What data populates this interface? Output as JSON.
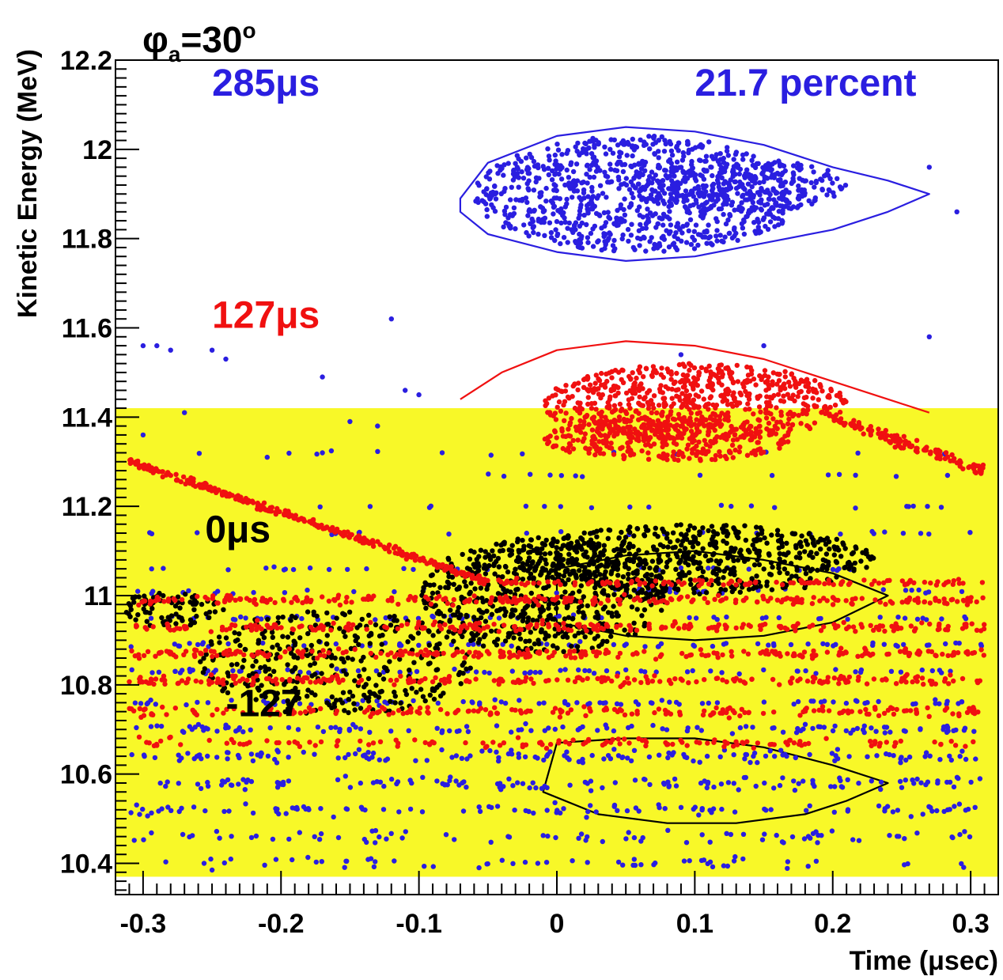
{
  "chart_data": {
    "type": "scatter",
    "title_prefix": "φ",
    "title_sub": "a",
    "title_suffix": "=30",
    "title_sup": "o",
    "xlabel": "Time (μsec)",
    "ylabel": "Kinetic Energy (MeV)",
    "xlim": [
      -0.32,
      0.32
    ],
    "ylim": [
      10.33,
      12.2
    ],
    "xticks": [
      -0.3,
      -0.2,
      -0.1,
      0,
      0.1,
      0.2,
      0.3
    ],
    "xtick_labels": [
      "-0.3",
      "-0.2",
      "-0.1",
      "0",
      "0.1",
      "0.2",
      "0.3"
    ],
    "yticks": [
      10.4,
      10.6,
      10.8,
      11.0,
      11.2,
      11.4,
      11.6,
      11.8,
      12.0,
      12.2
    ],
    "ytick_labels": [
      "10.4",
      "10.6",
      "10.8",
      "11",
      "11.2",
      "11.4",
      "11.6",
      "11.8",
      "12",
      "12.2"
    ],
    "highlight_band": {
      "y_range": [
        10.37,
        11.42
      ],
      "color": "#f8f828"
    },
    "grid": false,
    "colors": {
      "blue": "#2a1ee0",
      "red": "#f01010",
      "black": "#000000"
    },
    "annotations": [
      {
        "text": "285μs",
        "color": "#2a1ee0",
        "x": -0.25,
        "y": 12.12
      },
      {
        "text": "21.7 percent",
        "color": "#2a1ee0",
        "x": 0.1,
        "y": 12.12
      },
      {
        "text": "127μs",
        "color": "#f01010",
        "x": -0.25,
        "y": 11.6
      },
      {
        "text": "0μs",
        "color": "#000000",
        "x": -0.255,
        "y": 11.12
      },
      {
        "text": "-127",
        "color": "#000000",
        "x": -0.24,
        "y": 10.73
      }
    ],
    "series": [
      {
        "name": "285μs",
        "color": "#2a1ee0",
        "separatrix": [
          [
            -0.07,
            11.89
          ],
          [
            -0.05,
            11.97
          ],
          [
            0.0,
            12.03
          ],
          [
            0.05,
            12.05
          ],
          [
            0.1,
            12.04
          ],
          [
            0.15,
            12.01
          ],
          [
            0.2,
            11.96
          ],
          [
            0.24,
            11.93
          ],
          [
            0.27,
            11.9
          ],
          [
            0.24,
            11.86
          ],
          [
            0.2,
            11.82
          ],
          [
            0.15,
            11.79
          ],
          [
            0.1,
            11.76
          ],
          [
            0.05,
            11.75
          ],
          [
            0.0,
            11.77
          ],
          [
            -0.05,
            11.81
          ],
          [
            -0.07,
            11.86
          ]
        ],
        "clouds": [
          {
            "cx": 0.06,
            "cy": 11.9,
            "rx": 0.12,
            "ry": 0.13,
            "n": 900
          },
          {
            "cx": 0.13,
            "cy": 11.92,
            "rx": 0.08,
            "ry": 0.06,
            "n": 250
          }
        ],
        "bands": [
          {
            "y": 10.4,
            "x0": -0.31,
            "x1": 0.31,
            "n": 60,
            "jitter": 0.02
          },
          {
            "y": 10.46,
            "x0": -0.31,
            "x1": 0.31,
            "n": 80,
            "jitter": 0.02
          },
          {
            "y": 10.52,
            "x0": -0.31,
            "x1": 0.31,
            "n": 110,
            "jitter": 0.02
          },
          {
            "y": 10.58,
            "x0": -0.31,
            "x1": 0.31,
            "n": 140,
            "jitter": 0.02
          },
          {
            "y": 10.64,
            "x0": -0.31,
            "x1": 0.31,
            "n": 150,
            "jitter": 0.02
          },
          {
            "y": 10.7,
            "x0": -0.31,
            "x1": 0.31,
            "n": 120,
            "jitter": 0.015
          },
          {
            "y": 10.76,
            "x0": -0.31,
            "x1": 0.31,
            "n": 90,
            "jitter": 0.01
          },
          {
            "y": 10.83,
            "x0": -0.31,
            "x1": 0.31,
            "n": 80,
            "jitter": 0.008
          },
          {
            "y": 10.89,
            "x0": -0.31,
            "x1": 0.31,
            "n": 70,
            "jitter": 0.008
          },
          {
            "y": 10.95,
            "x0": -0.31,
            "x1": 0.31,
            "n": 60,
            "jitter": 0.008
          },
          {
            "y": 11.01,
            "x0": -0.31,
            "x1": 0.31,
            "n": 40,
            "jitter": 0.008
          },
          {
            "y": 11.06,
            "x0": -0.3,
            "x1": 0.3,
            "n": 30,
            "jitter": 0.006
          },
          {
            "y": 11.14,
            "x0": -0.3,
            "x1": 0.3,
            "n": 25,
            "jitter": 0.006
          },
          {
            "y": 11.2,
            "x0": -0.18,
            "x1": 0.28,
            "n": 20,
            "jitter": 0.006
          },
          {
            "y": 11.27,
            "x0": -0.05,
            "x1": 0.3,
            "n": 14,
            "jitter": 0.006
          },
          {
            "y": 11.32,
            "x0": -0.28,
            "x1": 0.3,
            "n": 14,
            "jitter": 0.01
          }
        ],
        "points": [
          [
            -0.3,
            11.56
          ],
          [
            -0.29,
            11.56
          ],
          [
            -0.28,
            11.55
          ],
          [
            -0.25,
            11.55
          ],
          [
            -0.24,
            11.53
          ],
          [
            -0.17,
            11.49
          ],
          [
            -0.12,
            11.62
          ],
          [
            -0.11,
            11.46
          ],
          [
            -0.1,
            11.45
          ],
          [
            0.09,
            11.54
          ],
          [
            0.15,
            11.56
          ],
          [
            0.27,
            11.58
          ],
          [
            0.27,
            11.96
          ],
          [
            0.29,
            11.86
          ],
          [
            -0.3,
            11.36
          ],
          [
            -0.27,
            11.41
          ],
          [
            -0.21,
            11.31
          ],
          [
            -0.17,
            11.32
          ],
          [
            -0.15,
            11.39
          ],
          [
            -0.13,
            11.38
          ]
        ]
      },
      {
        "name": "127μs",
        "color": "#f01010",
        "separatrix": [
          [
            -0.07,
            11.44
          ],
          [
            -0.04,
            11.5
          ],
          [
            0.0,
            11.55
          ],
          [
            0.05,
            11.57
          ],
          [
            0.1,
            11.56
          ],
          [
            0.15,
            11.53
          ],
          [
            0.2,
            11.48
          ],
          [
            0.27,
            11.41
          ]
        ],
        "clouds": [
          {
            "cx": 0.1,
            "cy": 11.43,
            "rx": 0.11,
            "ry": 0.09,
            "n": 700
          },
          {
            "cx": 0.08,
            "cy": 11.35,
            "rx": 0.09,
            "ry": 0.05,
            "n": 300
          }
        ],
        "diagonal": {
          "x0": -0.31,
          "y0": 11.3,
          "x1": -0.05,
          "y1": 11.03,
          "n": 320,
          "jitter": 0.012
        },
        "tail": {
          "x0": 0.2,
          "y0": 11.4,
          "x1": 0.31,
          "y1": 11.28,
          "n": 120,
          "jitter": 0.02
        },
        "bands": [
          {
            "y": 10.67,
            "x0": -0.31,
            "x1": 0.31,
            "n": 140,
            "jitter": 0.015
          },
          {
            "y": 10.74,
            "x0": -0.31,
            "x1": 0.31,
            "n": 200,
            "jitter": 0.015
          },
          {
            "y": 10.81,
            "x0": -0.31,
            "x1": 0.31,
            "n": 240,
            "jitter": 0.015
          },
          {
            "y": 10.87,
            "x0": -0.31,
            "x1": 0.31,
            "n": 260,
            "jitter": 0.015
          },
          {
            "y": 10.93,
            "x0": -0.31,
            "x1": 0.31,
            "n": 250,
            "jitter": 0.015
          },
          {
            "y": 10.99,
            "x0": -0.31,
            "x1": 0.31,
            "n": 260,
            "jitter": 0.015
          },
          {
            "y": 11.03,
            "x0": -0.05,
            "x1": 0.31,
            "n": 120,
            "jitter": 0.01
          }
        ]
      },
      {
        "name": "0μs",
        "color": "#000000",
        "separatrix": [
          [
            0.0,
            10.94
          ],
          [
            0.05,
            10.91
          ],
          [
            0.1,
            10.9
          ],
          [
            0.15,
            10.91
          ],
          [
            0.2,
            10.94
          ],
          [
            0.24,
            11.0
          ],
          [
            0.2,
            11.05
          ],
          [
            0.15,
            11.08
          ],
          [
            0.1,
            11.1
          ],
          [
            0.05,
            11.09
          ],
          [
            0.0,
            11.06
          ]
        ],
        "clouds": [
          {
            "cx": -0.01,
            "cy": 11.0,
            "rx": 0.09,
            "ry": 0.13,
            "n": 600
          },
          {
            "cx": 0.1,
            "cy": 11.08,
            "rx": 0.13,
            "ry": 0.08,
            "n": 600
          },
          {
            "cx": -0.16,
            "cy": 10.85,
            "rx": 0.1,
            "ry": 0.12,
            "n": 350
          },
          {
            "cx": -0.28,
            "cy": 10.97,
            "rx": 0.04,
            "ry": 0.04,
            "n": 80
          }
        ]
      },
      {
        "name": "-127",
        "color": "#000000",
        "separatrix": [
          [
            -0.01,
            10.56
          ],
          [
            0.03,
            10.51
          ],
          [
            0.08,
            10.49
          ],
          [
            0.13,
            10.49
          ],
          [
            0.18,
            10.51
          ],
          [
            0.21,
            10.54
          ],
          [
            0.24,
            10.58
          ],
          [
            0.2,
            10.62
          ],
          [
            0.15,
            10.66
          ],
          [
            0.1,
            10.68
          ],
          [
            0.05,
            10.68
          ],
          [
            0.0,
            10.67
          ]
        ]
      }
    ]
  }
}
